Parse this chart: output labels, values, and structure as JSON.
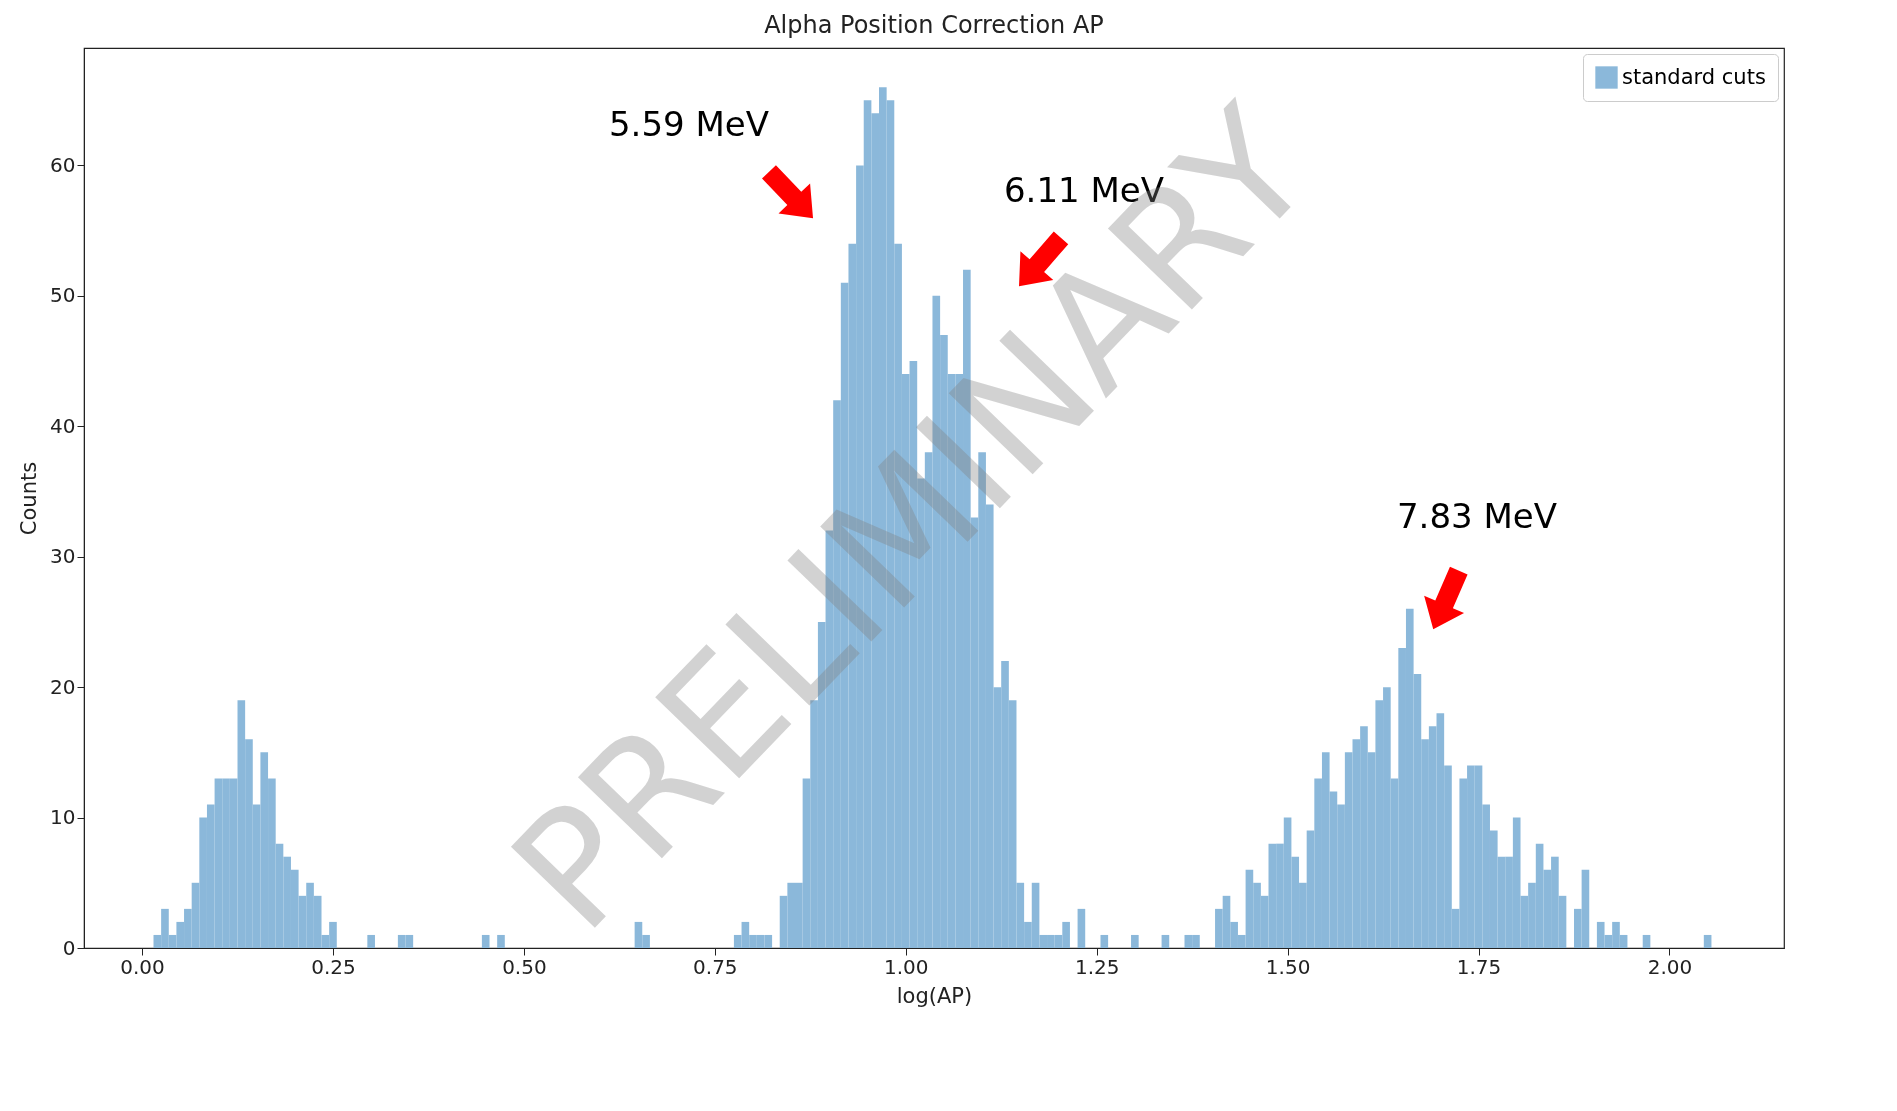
{
  "chart_data": {
    "type": "histogram",
    "title": "Alpha Position Correction AP",
    "xlabel": "log(AP)",
    "ylabel": "Counts",
    "bins": [
      0.015,
      0.025,
      0.035,
      0.045,
      0.055,
      0.065,
      0.075,
      0.085,
      0.095,
      0.105,
      0.115,
      0.125,
      0.135,
      0.145,
      0.155,
      0.165,
      0.175,
      0.185,
      0.195,
      0.205,
      0.215,
      0.225,
      0.235,
      0.245,
      0.255,
      0.265,
      0.275,
      0.285,
      0.295,
      0.305,
      0.315,
      0.325,
      0.335,
      0.345,
      0.355,
      0.365,
      0.375,
      0.385,
      0.395,
      0.405,
      0.415,
      0.425,
      0.435,
      0.445,
      0.455,
      0.465,
      0.475,
      0.485,
      0.495,
      0.505,
      0.515,
      0.525,
      0.535,
      0.545,
      0.555,
      0.565,
      0.575,
      0.585,
      0.595,
      0.605,
      0.615,
      0.625,
      0.635,
      0.645,
      0.655,
      0.665,
      0.675,
      0.685,
      0.695,
      0.705,
      0.715,
      0.725,
      0.735,
      0.745,
      0.755,
      0.765,
      0.775,
      0.785,
      0.795,
      0.805,
      0.815,
      0.825,
      0.835,
      0.845,
      0.855,
      0.865,
      0.875,
      0.885,
      0.895,
      0.905,
      0.915,
      0.925,
      0.935,
      0.945,
      0.955,
      0.965,
      0.975,
      0.985,
      0.995,
      1.005,
      1.015,
      1.025,
      1.035,
      1.045,
      1.055,
      1.065,
      1.075,
      1.085,
      1.095,
      1.105,
      1.115,
      1.125,
      1.135,
      1.145,
      1.155,
      1.165,
      1.175,
      1.185,
      1.195,
      1.205,
      1.215,
      1.225,
      1.235,
      1.245,
      1.255,
      1.265,
      1.275,
      1.285,
      1.295,
      1.305,
      1.315,
      1.325,
      1.335,
      1.345,
      1.355,
      1.365,
      1.375,
      1.385,
      1.395,
      1.405,
      1.415,
      1.425,
      1.435,
      1.445,
      1.455,
      1.465,
      1.475,
      1.485,
      1.495,
      1.505,
      1.515,
      1.525,
      1.535,
      1.545,
      1.555,
      1.565,
      1.575,
      1.585,
      1.595,
      1.605,
      1.615,
      1.625,
      1.635,
      1.645,
      1.655,
      1.665,
      1.675,
      1.685,
      1.695,
      1.705,
      1.715,
      1.725,
      1.735,
      1.745,
      1.755,
      1.765,
      1.775,
      1.785,
      1.795,
      1.805,
      1.815,
      1.825,
      1.835,
      1.845,
      1.855,
      1.865,
      1.875,
      1.885,
      1.895,
      1.905,
      1.915,
      1.925,
      1.935,
      1.945,
      1.955,
      1.965,
      1.975,
      1.985,
      1.995,
      2.005,
      2.015,
      2.025,
      2.035,
      2.045,
      2.055
    ],
    "series": [
      {
        "name": "standard cuts",
        "color": "#8bb8da",
        "values": [
          1,
          3,
          1,
          2,
          3,
          5,
          10,
          11,
          13,
          13,
          13,
          19,
          16,
          11,
          15,
          13,
          8,
          7,
          6,
          4,
          5,
          4,
          1,
          2,
          0,
          0,
          0,
          0,
          1,
          0,
          0,
          0,
          1,
          1,
          0,
          0,
          0,
          0,
          0,
          0,
          0,
          0,
          0,
          1,
          0,
          1,
          0,
          0,
          0,
          0,
          0,
          0,
          0,
          0,
          0,
          0,
          0,
          0,
          0,
          0,
          0,
          0,
          0,
          2,
          1,
          0,
          0,
          0,
          0,
          0,
          0,
          0,
          0,
          0,
          0,
          0,
          1,
          2,
          1,
          1,
          1,
          0,
          4,
          5,
          5,
          13,
          19,
          25,
          32,
          42,
          51,
          54,
          60,
          65,
          64,
          66,
          65,
          54,
          44,
          45,
          36,
          38,
          50,
          47,
          44,
          44,
          52,
          33,
          38,
          34,
          20,
          22,
          19,
          5,
          2,
          5,
          1,
          1,
          1,
          2,
          0,
          3,
          0,
          0,
          1,
          0,
          0,
          0,
          1,
          0,
          0,
          0,
          1,
          0,
          0,
          1,
          1,
          0,
          0,
          3,
          4,
          2,
          1,
          6,
          5,
          4,
          8,
          8,
          10,
          7,
          5,
          9,
          13,
          15,
          12,
          11,
          15,
          16,
          17,
          15,
          19,
          20,
          13,
          23,
          26,
          21,
          16,
          17,
          18,
          14,
          3,
          13,
          14,
          14,
          11,
          9,
          7,
          7,
          10,
          4,
          5,
          8,
          6,
          7,
          4,
          0,
          3,
          6,
          0,
          2,
          1,
          2,
          1,
          0,
          0,
          1,
          0,
          0,
          0,
          0,
          0,
          0,
          0,
          1
        ]
      }
    ],
    "xlim": [
      -0.076,
      2.15
    ],
    "xticks": [
      {
        "value": 0,
        "label": "0.00"
      },
      {
        "value": 0.25,
        "label": "0.25"
      },
      {
        "value": 0.5,
        "label": "0.50"
      },
      {
        "value": 0.75,
        "label": "0.75"
      },
      {
        "value": 1,
        "label": "1.00"
      },
      {
        "value": 1.25,
        "label": "1.25"
      },
      {
        "value": 1.5,
        "label": "1.50"
      },
      {
        "value": 1.75,
        "label": "1.75"
      },
      {
        "value": 2,
        "label": "2.00"
      }
    ],
    "ylim": [
      0,
      69
    ],
    "yticks": [
      0,
      10,
      20,
      30,
      40,
      50,
      60
    ],
    "legend": "top right",
    "annotations": [
      "5.59 MeV",
      "6.11 MeV",
      "7.83 MeV",
      "PRELIMINARY"
    ]
  }
}
